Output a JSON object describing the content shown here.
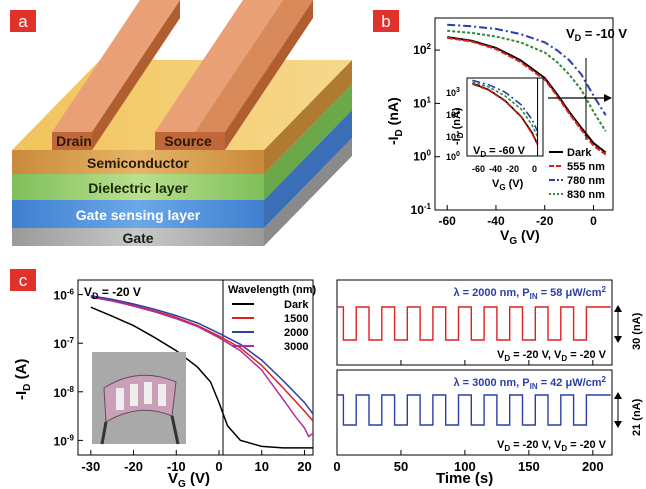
{
  "panels": {
    "a": {
      "label": "a",
      "layers": {
        "drain": "Drain",
        "source": "Source",
        "semiconductor": "Semiconductor",
        "dielectric": "Dielectric layer",
        "gate_sensing": "Gate sensing layer",
        "gate": "Gate"
      }
    },
    "b": {
      "label": "b",
      "annotation_vd": "V",
      "annotation_vd_sub": "D",
      "annotation_vd_val": " = -10 V",
      "inset_annotation": "V",
      "inset_annotation_sub": "D",
      "inset_annotation_val": " = -60 V",
      "xlabel_main": "V",
      "xlabel_sub": "G",
      "xlabel_unit": " (V)",
      "ylabel_main": "-I",
      "ylabel_sub": "D",
      "ylabel_unit": " (nA)",
      "inset_xlabel_main": "V",
      "inset_xlabel_sub": "G",
      "inset_xlabel_unit": " (V)",
      "inset_ylabel_main": "-I",
      "inset_ylabel_sub": "D",
      "inset_ylabel_unit": " (nA)",
      "legend": [
        "Dark",
        "555 nm",
        "780 nm",
        "830 nm"
      ]
    },
    "c": {
      "label": "c",
      "annotation_vd": "V",
      "annotation_vd_sub": "D",
      "annotation_vd_val": " = -20 V",
      "legend_title": "Wavelength (nm)",
      "legend": [
        "Dark",
        "1500",
        "2000",
        "3000"
      ],
      "xlabel_main": "V",
      "xlabel_sub": "G",
      "xlabel_unit": " (V)",
      "ylabel_main": "-I",
      "ylabel_sub": "D",
      "ylabel_unit": " (A)",
      "right_top_title_pre": "λ = 2000 nm, P",
      "right_top_title_sub": "IN",
      "right_top_title_post": " = 58 μW/cm",
      "right_top_title_sup": "2",
      "right_top_bias_a": "V",
      "right_top_bias_a_sub": "D",
      "right_top_bias_a_val": " = -20 V, V",
      "right_top_bias_b_sub": "D",
      "right_top_bias_b_val": " = -20 V",
      "right_top_scale": "30 (nA)",
      "right_bottom_title_pre": "λ = 3000 nm, P",
      "right_bottom_title_sub": "IN",
      "right_bottom_title_post": " = 42 μW/cm",
      "right_bottom_title_sup": "2",
      "right_bottom_bias_a": "V",
      "right_bottom_bias_a_sub": "D",
      "right_bottom_bias_a_val": " = -20 V, V",
      "right_bottom_bias_b_sub": "D",
      "right_bottom_bias_b_val": " = -20 V",
      "right_bottom_scale": "21 (nA)",
      "time_xlabel": "Time (s)"
    }
  },
  "colors": {
    "label_bg": "#e0322a",
    "dark": "#000000",
    "red": "#e02020",
    "blue": "#2a3fa8",
    "green": "#2e8b3a",
    "magenta": "#b0309a"
  },
  "chart_data": [
    {
      "type": "line",
      "xlabel": "VG (V)",
      "ylabel": "-ID (nA)",
      "xlim": [
        -65,
        8
      ],
      "ylim": [
        0.1,
        400
      ],
      "yscale": "log",
      "x_ticks": [
        -60,
        -40,
        -20,
        0
      ],
      "y_ticks": [
        "10^-1",
        "10^0",
        "10^1",
        "10^2"
      ],
      "series": [
        {
          "name": "Dark",
          "x": [
            -60,
            -50,
            -40,
            -30,
            -20,
            -15,
            -10,
            -5,
            0,
            5
          ],
          "y": [
            175,
            150,
            110,
            65,
            30,
            15,
            7,
            3.5,
            1.8,
            1.2
          ]
        },
        {
          "name": "555 nm",
          "x": [
            -60,
            -50,
            -40,
            -30,
            -20,
            -15,
            -10,
            -5,
            0,
            5
          ],
          "y": [
            170,
            145,
            105,
            60,
            28,
            14,
            6.5,
            3.2,
            1.6,
            1.1
          ]
        },
        {
          "name": "780 nm",
          "x": [
            -60,
            -50,
            -40,
            -30,
            -20,
            -15,
            -10,
            -5,
            0,
            5
          ],
          "y": [
            300,
            280,
            250,
            200,
            140,
            100,
            65,
            35,
            14,
            6
          ]
        },
        {
          "name": "830 nm",
          "x": [
            -60,
            -50,
            -40,
            -30,
            -20,
            -15,
            -10,
            -5,
            0,
            5
          ],
          "y": [
            230,
            210,
            180,
            140,
            90,
            60,
            35,
            18,
            7,
            3
          ]
        }
      ],
      "inset": {
        "xlim": [
          -65,
          5
        ],
        "ylim": [
          1,
          1500
        ],
        "x_ticks": [
          -60,
          -40,
          -20,
          0
        ],
        "y_ticks": [
          "10^0",
          "10^1",
          "10^2",
          "10^3"
        ]
      },
      "legend_position": "bottom-right"
    },
    {
      "type": "line",
      "xlabel": "VG (V)",
      "ylabel": "-ID (A)",
      "xlim": [
        -33,
        22
      ],
      "ylim": [
        5e-10,
        2e-06
      ],
      "yscale": "log",
      "x_ticks": [
        -30,
        -20,
        -10,
        0,
        10,
        20
      ],
      "y_ticks": [
        "10^-9",
        "10^-8",
        "10^-7",
        "10^-6"
      ],
      "series": [
        {
          "name": "Dark",
          "x": [
            -30,
            -25,
            -20,
            -15,
            -10,
            -5,
            -2,
            0,
            2,
            5,
            10,
            15,
            20,
            22
          ],
          "y": [
            5.5e-07,
            3.6e-07,
            2.3e-07,
            1.3e-07,
            7e-08,
            3.2e-08,
            1.6e-08,
            6e-09,
            2e-09,
            1e-09,
            7.5e-10,
            7e-10,
            7e-10,
            7e-10
          ]
        },
        {
          "name": "1500",
          "x": [
            -30,
            -25,
            -20,
            -15,
            -10,
            -5,
            0,
            5,
            10,
            15,
            20,
            22
          ],
          "y": [
            9e-07,
            7.6e-07,
            6e-07,
            4.6e-07,
            3.4e-07,
            2.3e-07,
            1.4e-07,
            8e-08,
            3.5e-08,
            1.2e-08,
            4e-09,
            2.5e-09
          ]
        },
        {
          "name": "2000",
          "x": [
            -30,
            -25,
            -20,
            -15,
            -10,
            -5,
            0,
            5,
            10,
            15,
            20,
            22
          ],
          "y": [
            9.5e-07,
            8e-07,
            6.4e-07,
            5e-07,
            3.7e-07,
            2.6e-07,
            1.6e-07,
            9.5e-08,
            4.5e-08,
            1.7e-08,
            6e-09,
            3.5e-09
          ]
        },
        {
          "name": "3000",
          "x": [
            -30,
            -25,
            -20,
            -15,
            -10,
            -5,
            0,
            5,
            10,
            15,
            18,
            20,
            21,
            22
          ],
          "y": [
            8.8e-07,
            7.4e-07,
            5.8e-07,
            4.4e-07,
            3.2e-07,
            2.2e-07,
            1.3e-07,
            7e-08,
            2.8e-08,
            7e-09,
            3e-09,
            1.8e-09,
            1.2e-09,
            1.4e-09
          ]
        }
      ],
      "legend_position": "top-right"
    },
    {
      "type": "line",
      "xlabel": "Time (s)",
      "xlim": [
        0,
        215
      ],
      "x_ticks": [
        0,
        50,
        100,
        150,
        200
      ],
      "series": [
        {
          "name": "λ = 2000 nm",
          "period_s": 20,
          "cycles": 10,
          "scale_na": 30
        },
        {
          "name": "λ = 3000 nm",
          "period_s": 20,
          "cycles": 10,
          "scale_na": 21
        }
      ]
    }
  ]
}
